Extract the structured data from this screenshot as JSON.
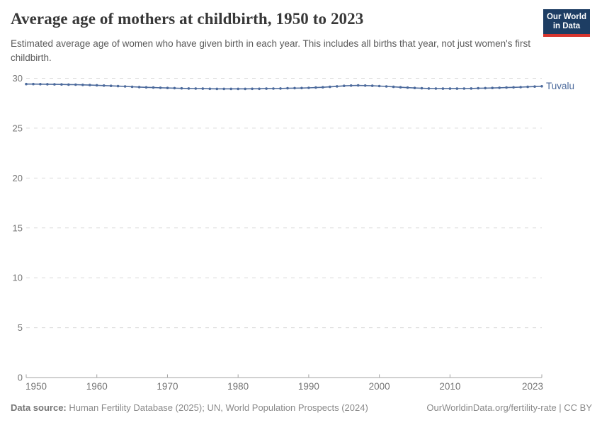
{
  "header": {
    "title": "Average age of mothers at childbirth, 1950 to 2023",
    "subtitle": "Estimated average age of women who have given birth in each year. This includes all births that year, not just women's first childbirth.",
    "logo": {
      "line1": "Our World",
      "line2": "in Data"
    }
  },
  "chart_data": {
    "type": "line",
    "title": "Average age of mothers at childbirth, 1950 to 2023",
    "xlabel": "",
    "ylabel": "",
    "xlim": [
      1950,
      2023
    ],
    "ylim": [
      0,
      30
    ],
    "x_ticks": [
      1950,
      1960,
      1970,
      1980,
      1990,
      2000,
      2010,
      2023
    ],
    "y_ticks": [
      0,
      5,
      10,
      15,
      20,
      25,
      30
    ],
    "grid": "horizontal-dashed",
    "legend_position": "end-of-line",
    "colors": {
      "line": "#4c6a9c",
      "grid": "#dadada",
      "axis": "#a3a3a3",
      "tick_label": "#757575"
    },
    "series": [
      {
        "name": "Tuvalu",
        "color": "#4c6a9c",
        "x": [
          1950,
          1951,
          1952,
          1953,
          1954,
          1955,
          1956,
          1957,
          1958,
          1959,
          1960,
          1961,
          1962,
          1963,
          1964,
          1965,
          1966,
          1967,
          1968,
          1969,
          1970,
          1971,
          1972,
          1973,
          1974,
          1975,
          1976,
          1977,
          1978,
          1979,
          1980,
          1981,
          1982,
          1983,
          1984,
          1985,
          1986,
          1987,
          1988,
          1989,
          1990,
          1991,
          1992,
          1993,
          1994,
          1995,
          1996,
          1997,
          1998,
          1999,
          2000,
          2001,
          2002,
          2003,
          2004,
          2005,
          2006,
          2007,
          2008,
          2009,
          2010,
          2011,
          2012,
          2013,
          2014,
          2015,
          2016,
          2017,
          2018,
          2019,
          2020,
          2021,
          2022,
          2023
        ],
        "values": [
          29.42,
          29.42,
          29.41,
          29.4,
          29.39,
          29.38,
          29.37,
          29.36,
          29.34,
          29.32,
          29.3,
          29.27,
          29.24,
          29.21,
          29.18,
          29.15,
          29.12,
          29.09,
          29.07,
          29.05,
          29.03,
          29.01,
          28.99,
          28.98,
          28.97,
          28.96,
          28.95,
          28.94,
          28.94,
          28.94,
          28.94,
          28.94,
          28.95,
          28.95,
          28.96,
          28.97,
          28.98,
          29.0,
          29.01,
          29.02,
          29.04,
          29.07,
          29.1,
          29.14,
          29.19,
          29.24,
          29.27,
          29.28,
          29.27,
          29.25,
          29.22,
          29.18,
          29.14,
          29.1,
          29.06,
          29.03,
          29.0,
          28.98,
          28.97,
          28.96,
          28.96,
          28.96,
          28.97,
          28.98,
          29.0,
          29.01,
          29.03,
          29.05,
          29.07,
          29.09,
          29.11,
          29.14,
          29.17,
          29.2
        ]
      }
    ]
  },
  "footer": {
    "datasource_label": "Data source:",
    "datasource_text": " Human Fertility Database (2025); UN, World Population Prospects (2024)",
    "link_text": "OurWorldinData.org/fertility-rate | CC BY"
  }
}
